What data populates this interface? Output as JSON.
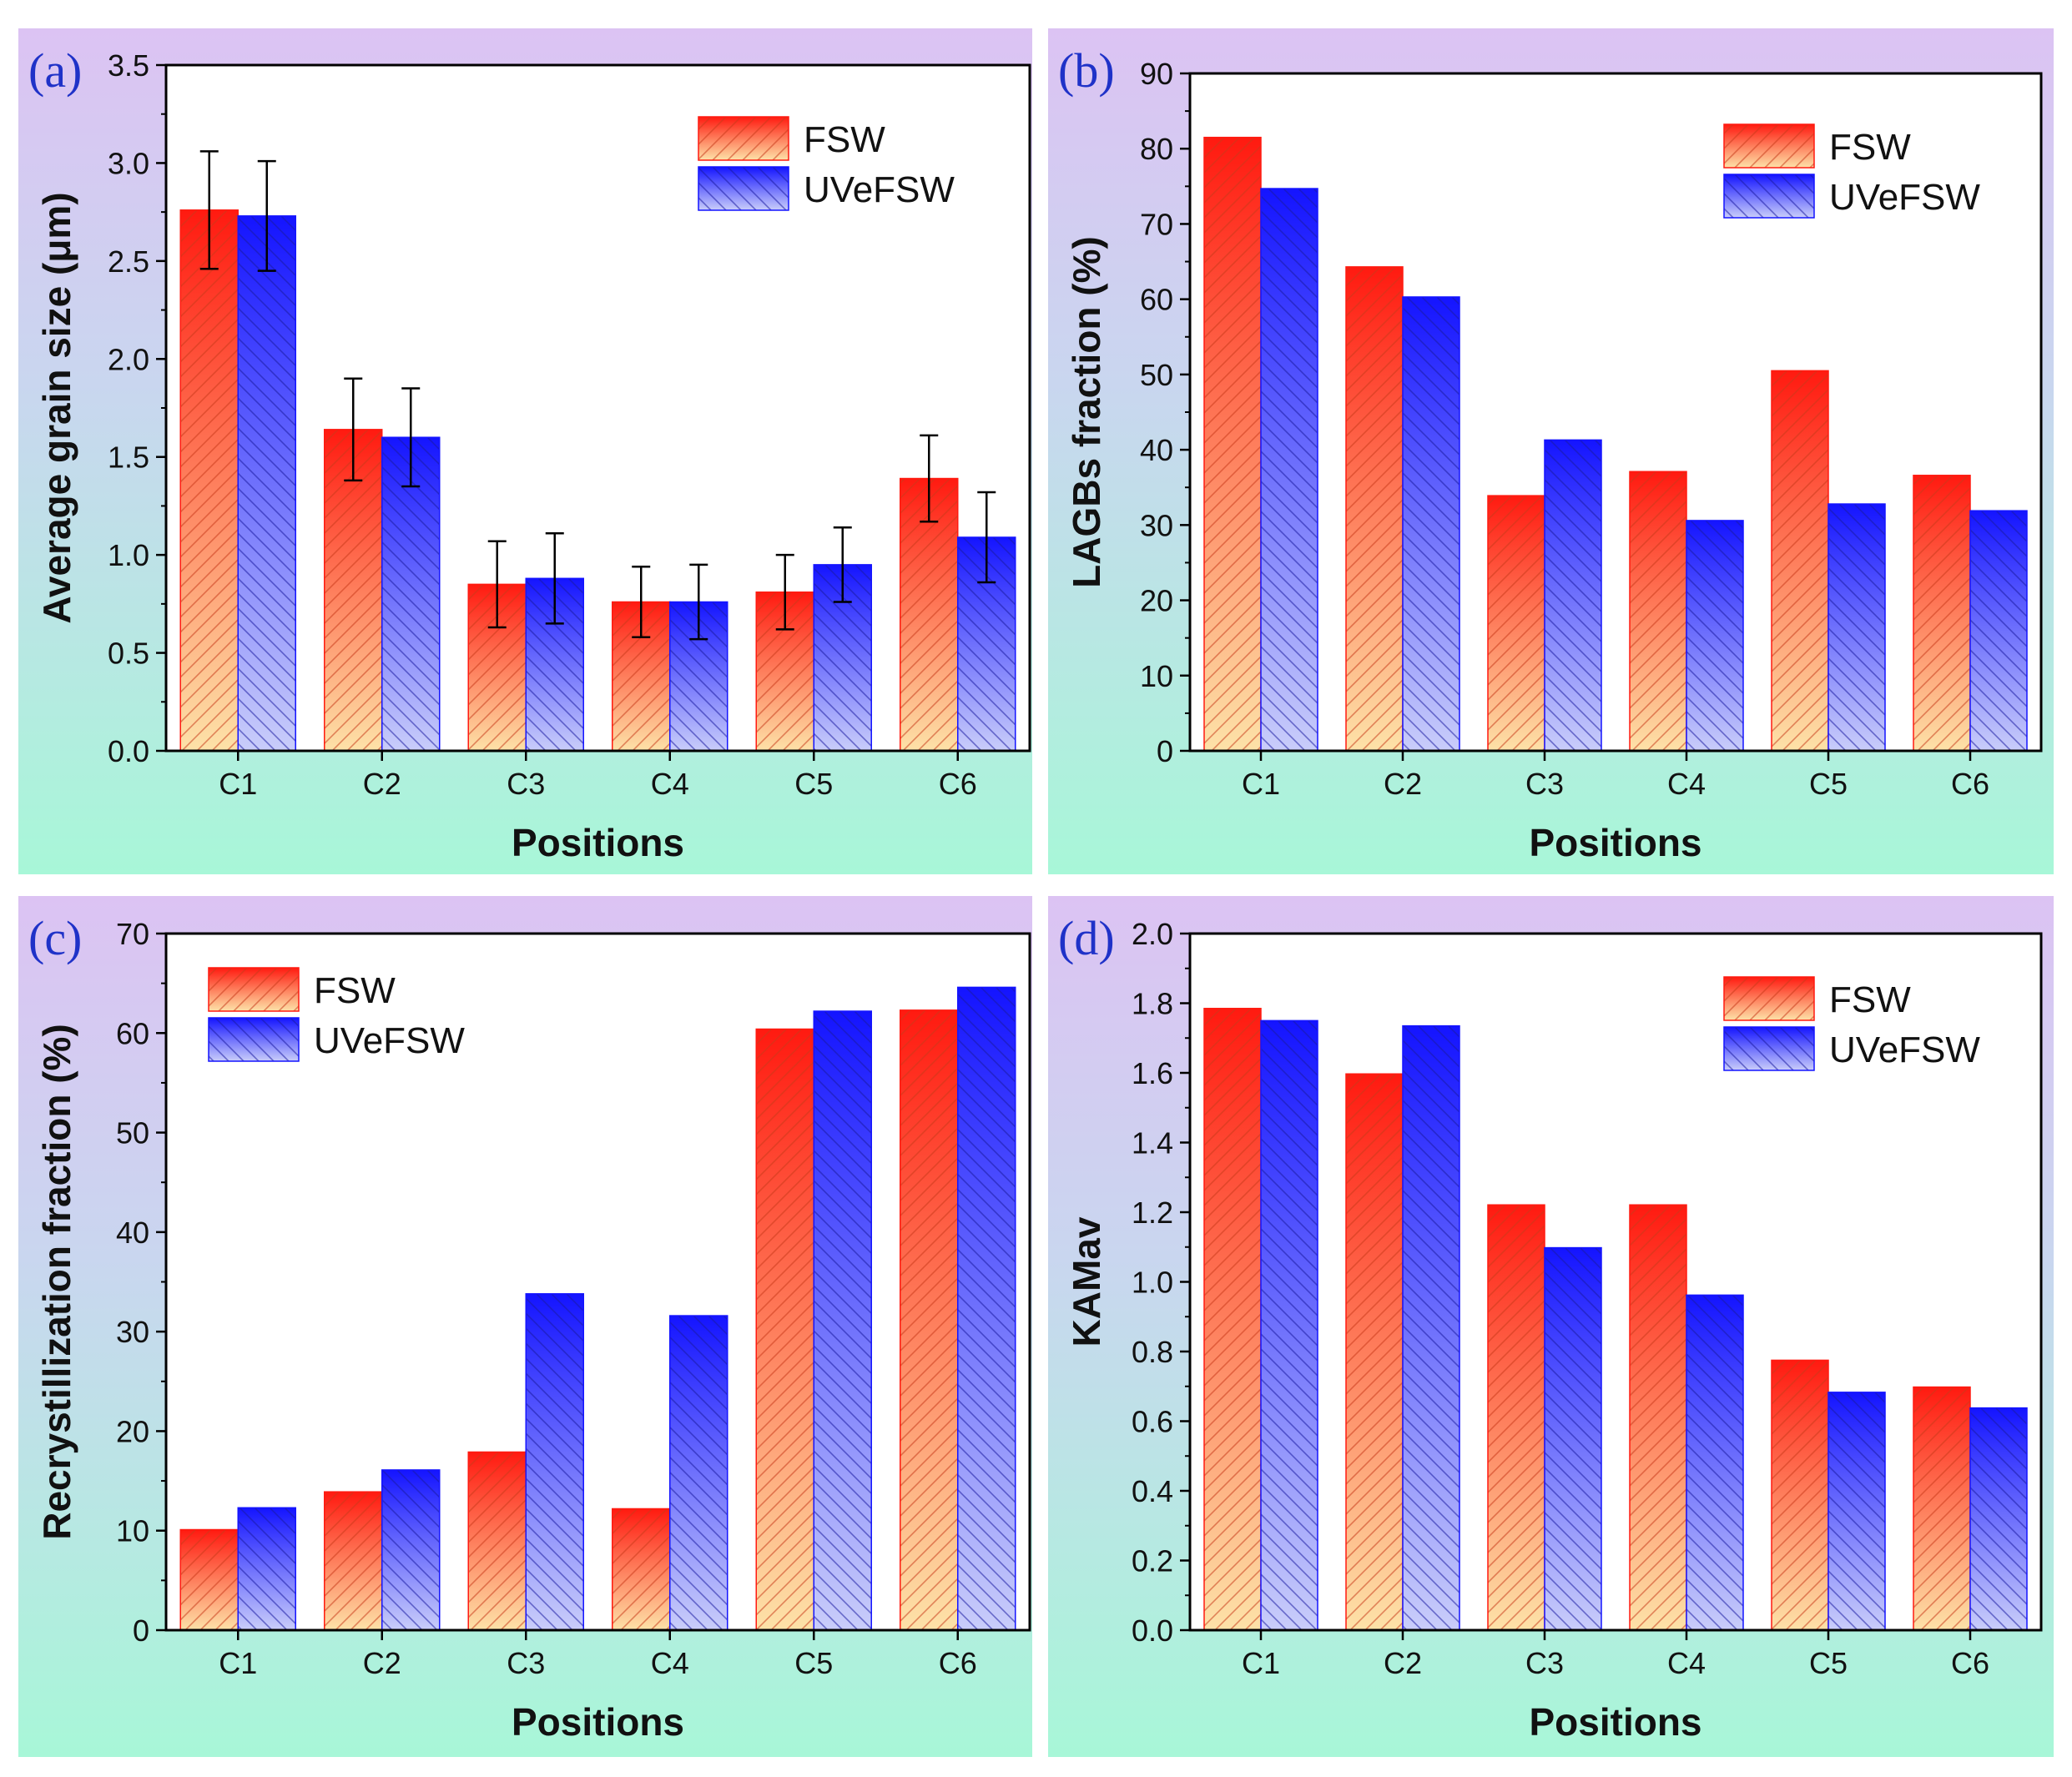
{
  "colors": {
    "fsw_top": "#ff1a10",
    "fsw_bottom": "#fde2a8",
    "fsw_hatch": "#c83a1a",
    "uve_top": "#1414ff",
    "uve_bottom": "#c9cdfa",
    "uve_hatch": "#1a1aa0",
    "error_bar": "#000000"
  },
  "chart_data": [
    {
      "panel": "a",
      "panel_label": "(a)",
      "type": "bar",
      "xlabel": "Positions",
      "ylabel": "Average grain size (μm)",
      "categories": [
        "C1",
        "C2",
        "C3",
        "C4",
        "C5",
        "C6"
      ],
      "ylim": [
        0,
        3.5
      ],
      "ytick_step": 0.5,
      "ytick_decimals": 1,
      "legend_position": "top-right",
      "series": [
        {
          "name": "FSW",
          "values": [
            2.76,
            1.64,
            0.85,
            0.76,
            0.81,
            1.39
          ],
          "errors": [
            0.3,
            0.26,
            0.22,
            0.18,
            0.19,
            0.22
          ]
        },
        {
          "name": "UVeFSW",
          "values": [
            2.73,
            1.6,
            0.88,
            0.76,
            0.95,
            1.09
          ],
          "errors": [
            0.28,
            0.25,
            0.23,
            0.19,
            0.19,
            0.23
          ]
        }
      ]
    },
    {
      "panel": "b",
      "panel_label": "(b)",
      "type": "bar",
      "xlabel": "Positions",
      "ylabel": "LAGBs fraction (%)",
      "categories": [
        "C1",
        "C2",
        "C3",
        "C4",
        "C5",
        "C6"
      ],
      "ylim": [
        0,
        90
      ],
      "ytick_step": 10,
      "ytick_decimals": 0,
      "legend_position": "top-right",
      "series": [
        {
          "name": "FSW",
          "values": [
            81.5,
            64.3,
            33.9,
            37.1,
            50.5,
            36.6
          ]
        },
        {
          "name": "UVeFSW",
          "values": [
            74.7,
            60.3,
            41.3,
            30.6,
            32.8,
            31.9
          ]
        }
      ]
    },
    {
      "panel": "c",
      "panel_label": "(c)",
      "type": "bar",
      "xlabel": "Positions",
      "ylabel": "Recrystillization fraction (%)",
      "categories": [
        "C1",
        "C2",
        "C3",
        "C4",
        "C5",
        "C6"
      ],
      "ylim": [
        0,
        70
      ],
      "ytick_step": 10,
      "ytick_decimals": 0,
      "legend_position": "top-left",
      "series": [
        {
          "name": "FSW",
          "values": [
            10.1,
            13.9,
            17.9,
            12.2,
            60.4,
            62.3
          ]
        },
        {
          "name": "UVeFSW",
          "values": [
            12.3,
            16.1,
            33.8,
            31.6,
            62.2,
            64.6
          ]
        }
      ]
    },
    {
      "panel": "d",
      "panel_label": "(d)",
      "type": "bar",
      "xlabel": "Positions",
      "ylabel": "KAMav",
      "categories": [
        "C1",
        "C2",
        "C3",
        "C4",
        "C5",
        "C6"
      ],
      "ylim": [
        0,
        2.0
      ],
      "ytick_step": 0.2,
      "ytick_decimals": 1,
      "legend_position": "top-right",
      "series": [
        {
          "name": "FSW",
          "values": [
            1.785,
            1.597,
            1.221,
            1.221,
            0.775,
            0.698
          ]
        },
        {
          "name": "UVeFSW",
          "values": [
            1.75,
            1.735,
            1.098,
            0.962,
            0.683,
            0.638
          ]
        }
      ]
    }
  ]
}
